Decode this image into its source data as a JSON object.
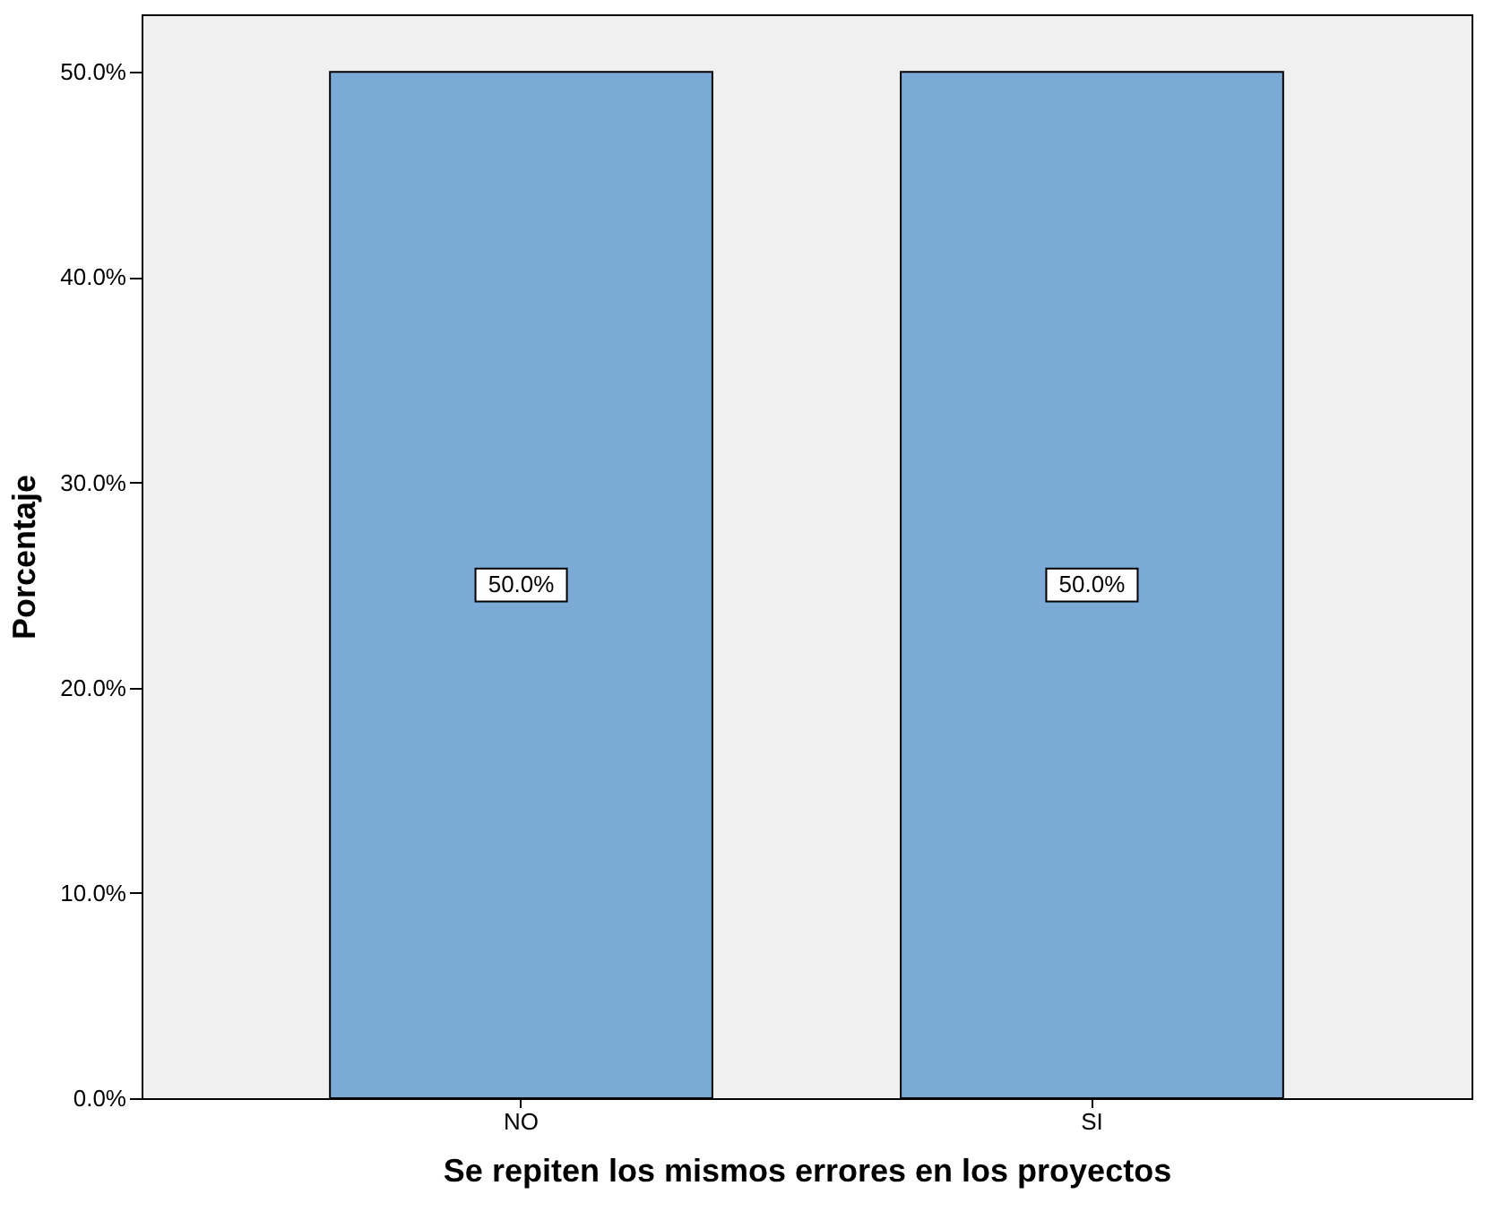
{
  "chart_data": {
    "type": "bar",
    "xlabel": "Se repiten los mismos errores en los proyectos",
    "ylabel": "Porcentaje",
    "categories": [
      "NO",
      "SI"
    ],
    "values": [
      50.0,
      50.0
    ],
    "color": "#7baad6",
    "value_labels": [
      "50.0%",
      "50.0%"
    ],
    "ylim": [
      0,
      52.8
    ],
    "yticks": [
      {
        "value": 0,
        "label": "0.0%"
      },
      {
        "value": 10,
        "label": "10.0%"
      },
      {
        "value": 20,
        "label": "20.0%"
      },
      {
        "value": 30,
        "label": "30.0%"
      },
      {
        "value": 40,
        "label": "40.0%"
      },
      {
        "value": 50,
        "label": "50.0%"
      }
    ],
    "grid": false
  }
}
